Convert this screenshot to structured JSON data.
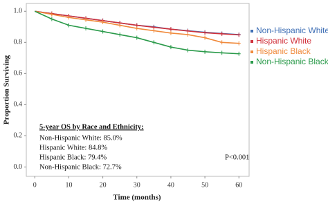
{
  "chart_data": {
    "type": "line",
    "x_label": "Time (months)",
    "y_label": "Proportion Surviving",
    "x": [
      0,
      5,
      10,
      15,
      20,
      25,
      30,
      35,
      40,
      45,
      50,
      55,
      60
    ],
    "series": [
      {
        "name": "Non-Hispanic White",
        "color": "#3f6fb5",
        "values": [
          1.0,
          0.985,
          0.97,
          0.955,
          0.94,
          0.925,
          0.91,
          0.9,
          0.885,
          0.875,
          0.865,
          0.857,
          0.85
        ]
      },
      {
        "name": "Hispanic White",
        "color": "#d0303a",
        "values": [
          1.0,
          0.985,
          0.97,
          0.955,
          0.94,
          0.925,
          0.91,
          0.897,
          0.885,
          0.873,
          0.862,
          0.855,
          0.848
        ]
      },
      {
        "name": "Hispanic Black",
        "color": "#f08a3c",
        "values": [
          1.0,
          0.98,
          0.96,
          0.945,
          0.93,
          0.91,
          0.89,
          0.875,
          0.86,
          0.85,
          0.83,
          0.8,
          0.794
        ]
      },
      {
        "name": "Non-Hispanic Black",
        "color": "#2a9a4a",
        "values": [
          1.0,
          0.95,
          0.91,
          0.89,
          0.87,
          0.85,
          0.83,
          0.8,
          0.77,
          0.75,
          0.74,
          0.733,
          0.727
        ]
      }
    ],
    "xlim": [
      -2.5,
      63
    ],
    "ylim": [
      -0.06,
      1.05
    ],
    "xticks": [
      0,
      10,
      20,
      30,
      40,
      50,
      60
    ],
    "yticks": [
      {
        "value": 0,
        "label": "0.0"
      },
      0.2,
      0.4,
      0.6,
      0.8,
      {
        "value": 1,
        "label": "1.0"
      }
    ],
    "legend": "right",
    "summary": {
      "title": "5-year OS by Race and Ethnicity:",
      "lines": [
        "Non-Hispanic White: 85.0%",
        "Hispanic White: 84.8%",
        "Hispanic Black: 79.4%",
        "Non-Hispanic Black: 72.7%"
      ]
    },
    "p_value": "P<0.001"
  }
}
